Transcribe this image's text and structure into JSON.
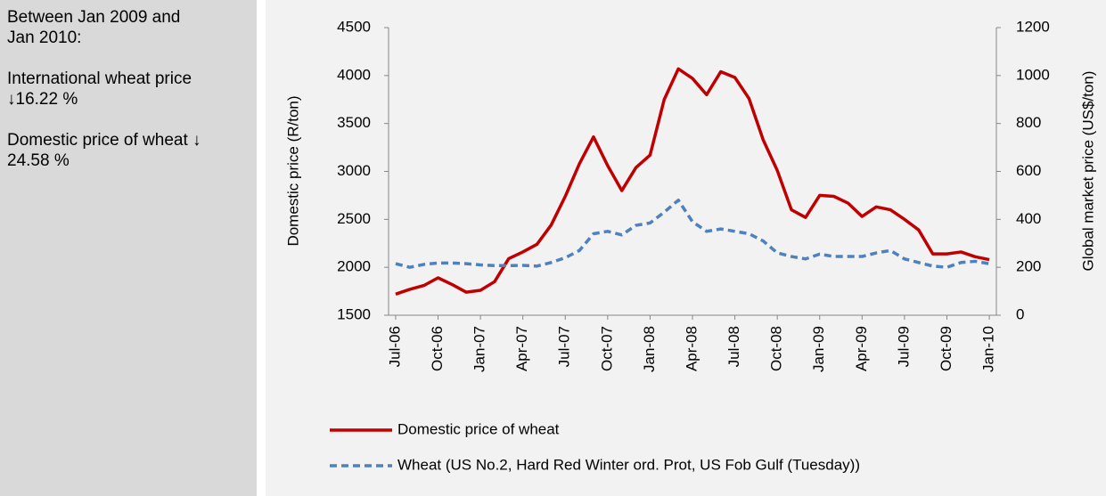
{
  "side_panel": {
    "heading": "Between Jan 2009 and Jan 2010:",
    "notes": [
      "International wheat price ↓16.22 %",
      "Domestic price of wheat ↓ 24.58 %"
    ]
  },
  "chart_data": {
    "type": "line",
    "ylabel": "Domestic price (R/ton)",
    "y2label": "Global market price (US$/ton)",
    "categories": [
      "Jul-06",
      null,
      null,
      "Oct-06",
      null,
      null,
      "Jan-07",
      null,
      null,
      "Apr-07",
      null,
      null,
      "Jul-07",
      null,
      null,
      "Oct-07",
      null,
      null,
      "Jan-08",
      null,
      null,
      "Apr-08",
      null,
      null,
      "Jul-08",
      null,
      null,
      "Oct-08",
      null,
      null,
      "Jan-09",
      null,
      null,
      "Apr-09",
      null,
      null,
      "Jul-09",
      null,
      null,
      "Oct-09",
      null,
      null,
      "Jan-10"
    ],
    "series": [
      {
        "name": "Domestic price of wheat",
        "color": "#c00000",
        "axis": "y",
        "dashed": false,
        "values": [
          1720,
          1770,
          1810,
          1890,
          1820,
          1740,
          1760,
          1850,
          2090,
          2160,
          2240,
          2440,
          2740,
          3080,
          3360,
          3060,
          2800,
          3040,
          3170,
          3750,
          4070,
          3970,
          3800,
          4040,
          3980,
          3760,
          3330,
          3010,
          2600,
          2520,
          2750,
          2740,
          2670,
          2530,
          2630,
          2600,
          2500,
          2390,
          2140,
          2140,
          2160,
          2110,
          2080
        ]
      },
      {
        "name": "Wheat (US No.2, Hard Red Winter ord. Prot, US Fob Gulf (Tuesday))",
        "color": "#4f81bd",
        "axis": "y2",
        "dashed": true,
        "values": [
          215,
          200,
          212,
          218,
          218,
          215,
          210,
          207,
          207,
          208,
          205,
          220,
          240,
          270,
          340,
          350,
          335,
          375,
          385,
          430,
          480,
          390,
          350,
          360,
          350,
          340,
          310,
          260,
          245,
          235,
          255,
          245,
          245,
          245,
          260,
          270,
          235,
          220,
          205,
          200,
          220,
          225,
          215
        ]
      }
    ],
    "ylim": [
      1500,
      4500
    ],
    "yticks": [
      1500,
      2000,
      2500,
      3000,
      3500,
      4000,
      4500
    ],
    "y2lim": [
      0,
      1200
    ],
    "y2ticks": [
      0,
      200,
      400,
      600,
      800,
      1000,
      1200
    ],
    "grid": false,
    "legend": "bottom"
  }
}
